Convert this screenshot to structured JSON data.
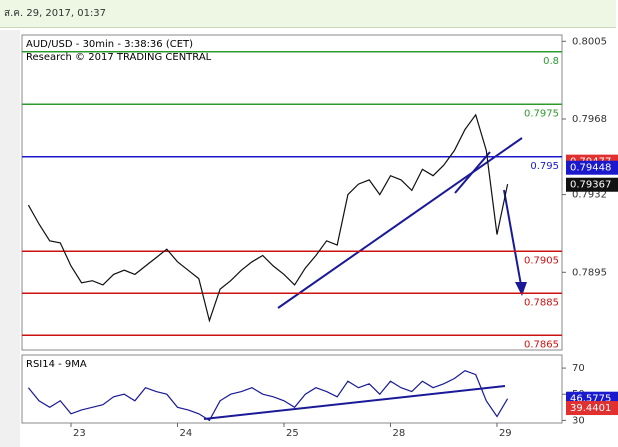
{
  "header": {
    "time": "ส.ค. 29, 2017, 01:37"
  },
  "chart_data": [
    {
      "type": "line",
      "title": "AUD/USD - 30min - 3:38:36 (CET)",
      "subtitle": "Research © 2017 TRADING CENTRAL",
      "categories": [
        null,
        null,
        null,
        null,
        "23",
        null,
        null,
        null,
        null,
        null,
        null,
        null,
        null,
        null,
        "24",
        null,
        null,
        null,
        null,
        null,
        null,
        null,
        null,
        null,
        "25",
        null,
        null,
        null,
        null,
        null,
        null,
        null,
        null,
        null,
        "28",
        null,
        null,
        null,
        null,
        null,
        null,
        null,
        null,
        null,
        "29",
        null
      ],
      "values": [
        0.7927,
        0.7918,
        0.791,
        0.7909,
        0.7898,
        0.789,
        0.7891,
        0.7889,
        0.7894,
        0.7896,
        0.7894,
        0.7898,
        0.7902,
        0.7906,
        0.79,
        0.7896,
        0.7892,
        0.7872,
        0.7887,
        0.7891,
        0.7896,
        0.79,
        0.7903,
        0.7898,
        0.7894,
        0.7889,
        0.7897,
        0.7903,
        0.791,
        0.7908,
        0.7932,
        0.7937,
        0.7939,
        0.7932,
        0.7941,
        0.7939,
        0.7934,
        0.7944,
        0.7941,
        0.7946,
        0.7953,
        0.7963,
        0.797,
        0.7953,
        0.7913,
        0.7937
      ],
      "color": "#111111",
      "ylim": [
        0.7858,
        0.8008
      ],
      "yticks": [
        0.7895,
        0.7932,
        0.7968,
        0.8005
      ],
      "levels": [
        {
          "value": 0.8,
          "color": "#2e9a2e"
        },
        {
          "value": 0.7975,
          "color": "#2e9a2e"
        },
        {
          "value": 0.795,
          "color": "#1a1acc"
        },
        {
          "value": 0.7905,
          "color": "#cc1111"
        },
        {
          "value": 0.7885,
          "color": "#cc1111"
        },
        {
          "value": 0.7865,
          "color": "#cc1111"
        }
      ],
      "price_tags": [
        {
          "value": 0.79477,
          "color": "#e03030"
        },
        {
          "value": 0.79448,
          "color": "#1a1acc"
        },
        {
          "value": 0.79367,
          "color": "#111111"
        }
      ]
    },
    {
      "type": "line",
      "title": "RSI14 - 9MA",
      "values": [
        55,
        45,
        40,
        45,
        35,
        38,
        40,
        42,
        48,
        50,
        45,
        55,
        52,
        50,
        40,
        38,
        35,
        30,
        45,
        50,
        52,
        55,
        50,
        48,
        45,
        40,
        50,
        55,
        52,
        48,
        60,
        55,
        58,
        50,
        60,
        55,
        52,
        60,
        55,
        58,
        62,
        68,
        65,
        45,
        33,
        46.6
      ],
      "color": "#1a1a99",
      "ylim": [
        28,
        80
      ],
      "yticks": [
        30,
        50,
        70
      ],
      "price_tags": [
        {
          "value": 46.5775,
          "color": "#1a1acc"
        },
        {
          "value": 39.4401,
          "color": "#e03030"
        }
      ]
    }
  ]
}
